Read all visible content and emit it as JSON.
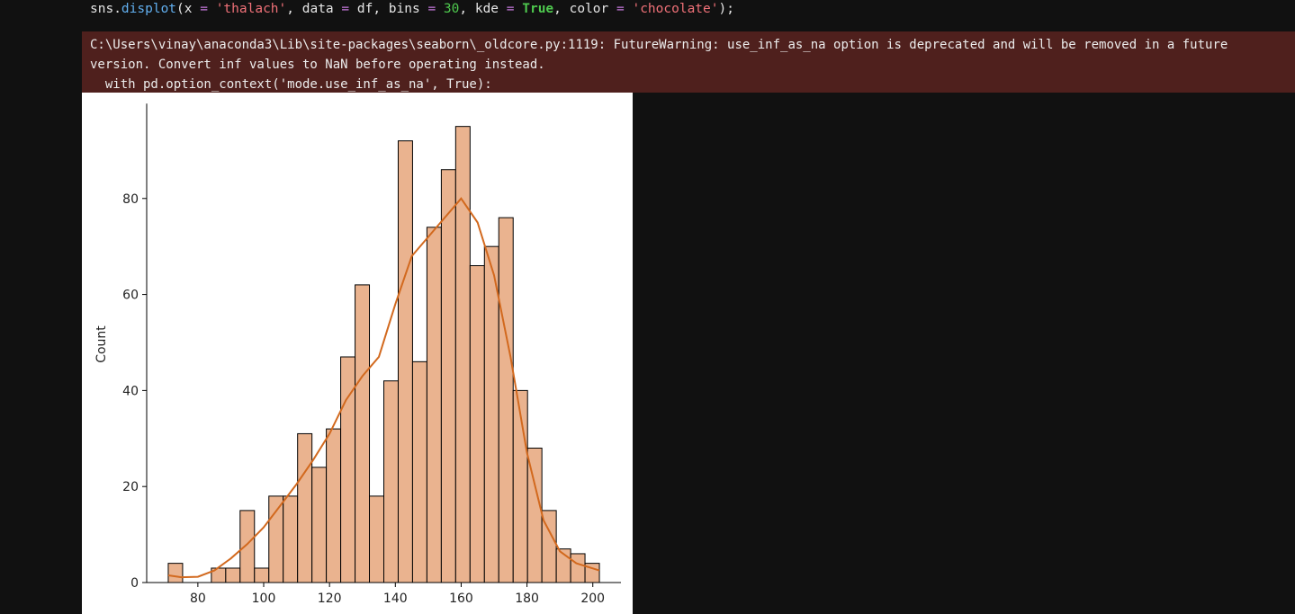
{
  "code": [
    {
      "text": "sns.",
      "color": "#e6e6e6"
    },
    {
      "text": "displot",
      "color": "#61afef"
    },
    {
      "text": "(x ",
      "color": "#e6e6e6"
    },
    {
      "text": "=",
      "color": "#c678dd"
    },
    {
      "text": " 'thalach'",
      "color": "#f07178"
    },
    {
      "text": ", data ",
      "color": "#e6e6e6"
    },
    {
      "text": "=",
      "color": "#c678dd"
    },
    {
      "text": " df, bins ",
      "color": "#e6e6e6"
    },
    {
      "text": "=",
      "color": "#c678dd"
    },
    {
      "text": " 30",
      "color": "#4ec94e"
    },
    {
      "text": ", kde ",
      "color": "#e6e6e6"
    },
    {
      "text": "=",
      "color": "#c678dd"
    },
    {
      "text": " True",
      "color": "#4ec94e",
      "bold": true
    },
    {
      "text": ", color ",
      "color": "#e6e6e6"
    },
    {
      "text": "=",
      "color": "#c678dd"
    },
    {
      "text": " 'chocolate'",
      "color": "#f07178"
    },
    {
      "text": ");",
      "color": "#e6e6e6"
    }
  ],
  "warning": [
    "C:\\Users\\vinay\\anaconda3\\Lib\\site-packages\\seaborn\\_oldcore.py:1119: FutureWarning: use_inf_as_na option is deprecated and will be removed in a future",
    "version. Convert inf values to NaN before operating instead.",
    "  with pd.option_context('mode.use_inf_as_na', True):"
  ],
  "chart_data": {
    "type": "histogram",
    "y_label": "Count",
    "bins": [
      71,
      75.37,
      79.73,
      84.1,
      88.47,
      92.83,
      97.2,
      101.57,
      105.93,
      110.3,
      114.67,
      119.03,
      123.4,
      127.77,
      132.13,
      136.5,
      140.87,
      145.23,
      149.6,
      153.97,
      158.33,
      162.7,
      167.07,
      171.43,
      175.8,
      180.17,
      184.53,
      188.9,
      193.27,
      197.63,
      202
    ],
    "values": [
      4,
      0,
      0,
      3,
      3,
      15,
      3,
      18,
      18,
      31,
      24,
      32,
      47,
      62,
      18,
      42,
      92,
      46,
      74,
      86,
      95,
      66,
      70,
      76,
      40,
      28,
      15,
      7,
      6,
      4
    ],
    "color": "#eab38f",
    "kde": {
      "color": "#d2691e",
      "x": [
        71,
        75,
        80,
        85,
        90,
        95,
        100,
        105,
        110,
        115,
        120,
        125,
        130,
        135,
        140,
        145,
        150,
        155,
        160,
        165,
        170,
        175,
        180,
        185,
        190,
        195,
        202
      ],
      "values": [
        1.5,
        1.1,
        1.2,
        2.5,
        5,
        8,
        11.5,
        16,
        20.5,
        25.5,
        31,
        38,
        43,
        47,
        58,
        68,
        72,
        76,
        80,
        75,
        64,
        47,
        27,
        13,
        6.5,
        4,
        2.5
      ]
    },
    "xlim": [
      64.45,
      208.55
    ],
    "xticks": [
      80,
      100,
      120,
      140,
      160,
      180,
      200
    ],
    "ylim": [
      0,
      99.75
    ],
    "yticks": [
      0,
      20,
      40,
      60,
      80
    ]
  }
}
